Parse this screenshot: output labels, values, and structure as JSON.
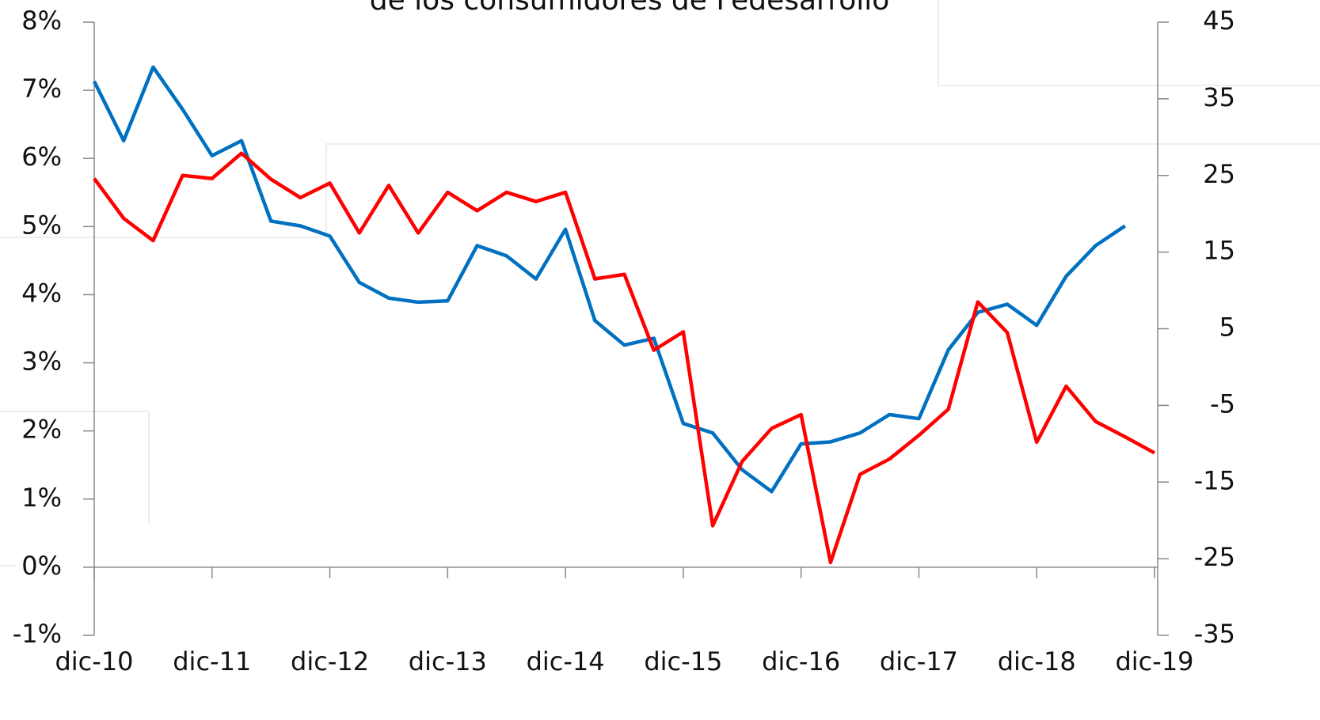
{
  "chart_data": {
    "type": "line",
    "title": "de los consumidores de Fedesarrollo",
    "categories": [
      "dic-10",
      null,
      null,
      null,
      "dic-11",
      null,
      null,
      null,
      "dic-12",
      null,
      null,
      null,
      "dic-13",
      null,
      null,
      null,
      "dic-14",
      null,
      null,
      null,
      "dic-15",
      null,
      null,
      null,
      "dic-16",
      null,
      null,
      null,
      "dic-17",
      null,
      null,
      null,
      "dic-18",
      null,
      null,
      null,
      "dic-19"
    ],
    "series": [
      {
        "color": "#0070c0",
        "values": [
          7.13,
          6.26,
          7.34,
          6.72,
          6.04,
          6.26,
          5.08,
          5.01,
          4.86,
          4.18,
          3.95,
          3.89,
          3.91,
          4.72,
          4.57,
          4.23,
          4.96,
          3.62,
          3.26,
          3.36,
          2.11,
          1.97,
          1.43,
          1.11,
          1.81,
          1.84,
          1.97,
          2.24,
          2.18,
          3.19,
          3.74,
          3.86,
          3.55,
          4.27,
          4.72,
          5.01,
          null
        ]
      },
      {
        "color": "#ff0000",
        "axis": "y2",
        "values": [
          24.6,
          19.4,
          16.5,
          25.0,
          24.6,
          27.9,
          24.5,
          22.1,
          24.0,
          17.5,
          23.7,
          17.5,
          22.8,
          20.4,
          22.8,
          21.6,
          22.8,
          11.5,
          12.1,
          2.2,
          4.6,
          -20.7,
          -12.3,
          -8.0,
          -6.2,
          -25.5,
          -14.0,
          -12.0,
          -8.9,
          -5.5,
          8.5,
          4.5,
          -9.8,
          -2.5,
          -7.1,
          -9.1,
          -11.2
        ]
      }
    ],
    "ylim": [
      -1,
      8
    ],
    "yticks": [
      {
        "value": -1,
        "label": "-1%"
      },
      {
        "value": 0,
        "label": "0%"
      },
      {
        "value": 1,
        "label": "1%"
      },
      {
        "value": 2,
        "label": "2%"
      },
      {
        "value": 3,
        "label": "3%"
      },
      {
        "value": 4,
        "label": "4%"
      },
      {
        "value": 5,
        "label": "5%"
      },
      {
        "value": 6,
        "label": "6%"
      },
      {
        "value": 7,
        "label": "7%"
      },
      {
        "value": 8,
        "label": "8%"
      }
    ],
    "y2lim": [
      -35,
      45
    ],
    "y2ticks": [
      -35,
      -25,
      -15,
      -5,
      5,
      15,
      25,
      35,
      45
    ]
  }
}
